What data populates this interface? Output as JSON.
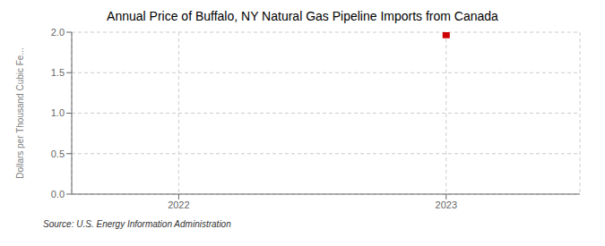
{
  "chart_data": {
    "type": "scatter",
    "title": "Annual Price of Buffalo, NY Natural Gas Pipeline Imports from Canada",
    "ylabel": "Dollars per Thousand Cubic Fe...",
    "annotations": [
      "Source: U.S. Energy Information Administration"
    ],
    "x": [
      2023
    ],
    "values": [
      1.97
    ],
    "color": "#cc0000",
    "marker": "square",
    "xlim": [
      2021.6,
      2023.5
    ],
    "ylim": [
      0,
      2
    ],
    "xticks": [
      2022,
      2023
    ],
    "yticks": [
      {
        "value": 0,
        "label": "0.0"
      },
      {
        "value": 0.5,
        "label": "0.5"
      },
      {
        "value": 1,
        "label": "1.0"
      },
      {
        "value": 1.5,
        "label": "1.5"
      },
      {
        "value": 2,
        "label": "2.0"
      }
    ],
    "grid": true
  }
}
